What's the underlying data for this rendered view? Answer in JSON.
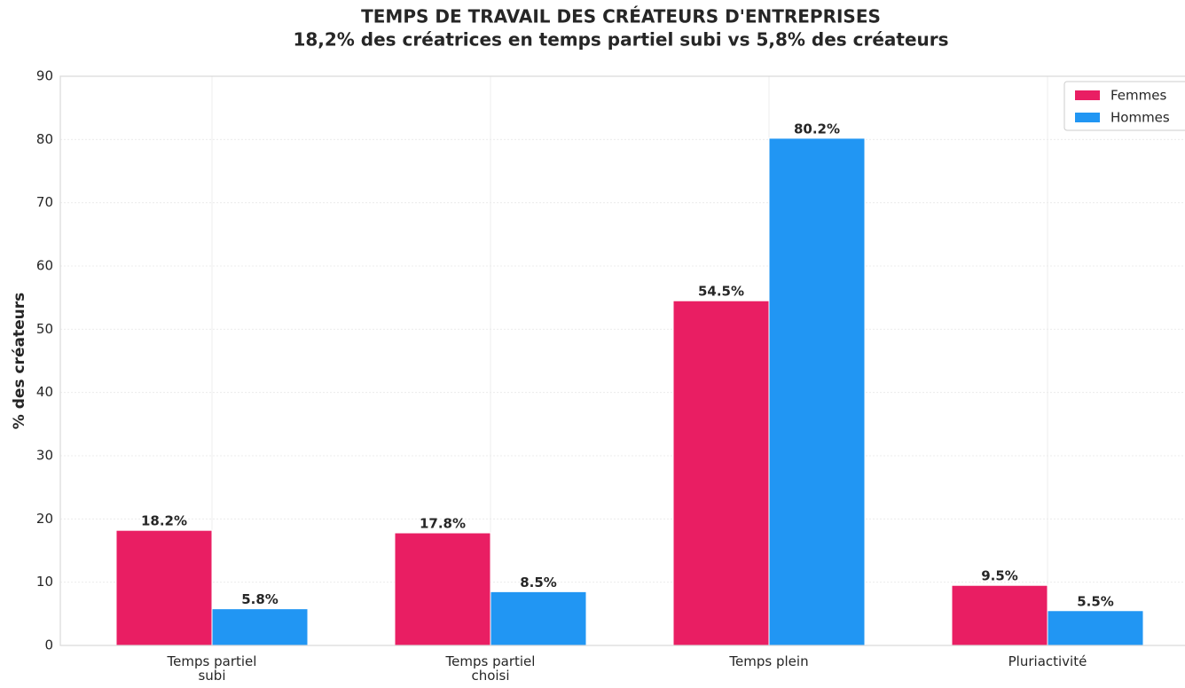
{
  "chart_data": {
    "type": "bar",
    "title": "TEMPS DE TRAVAIL DES CRÉATEURS D'ENTREPRISES",
    "subtitle": "18,2% des créatrices en temps partiel subi vs 5,8% des créateurs",
    "y_label": "% des créateurs",
    "categories": [
      "Temps partiel\nsubi",
      "Temps partiel\nchoisi",
      "Temps plein",
      "Pluriactivité"
    ],
    "series": [
      {
        "name": "Femmes",
        "color": "#e91e63",
        "values": [
          18.2,
          17.8,
          54.5,
          9.5
        ],
        "value_labels": [
          "18.2%",
          "17.8%",
          "54.5%",
          "9.5%"
        ]
      },
      {
        "name": "Hommes",
        "color": "#2196f3",
        "values": [
          5.8,
          8.5,
          80.2,
          5.5
        ],
        "value_labels": [
          "5.8%",
          "8.5%",
          "80.2%",
          "5.5%"
        ]
      }
    ],
    "ylim": [
      0,
      90
    ],
    "yticks": [
      0,
      10,
      20,
      30,
      40,
      50,
      60,
      70,
      80,
      90
    ],
    "grid": true,
    "legend": "upper right"
  }
}
